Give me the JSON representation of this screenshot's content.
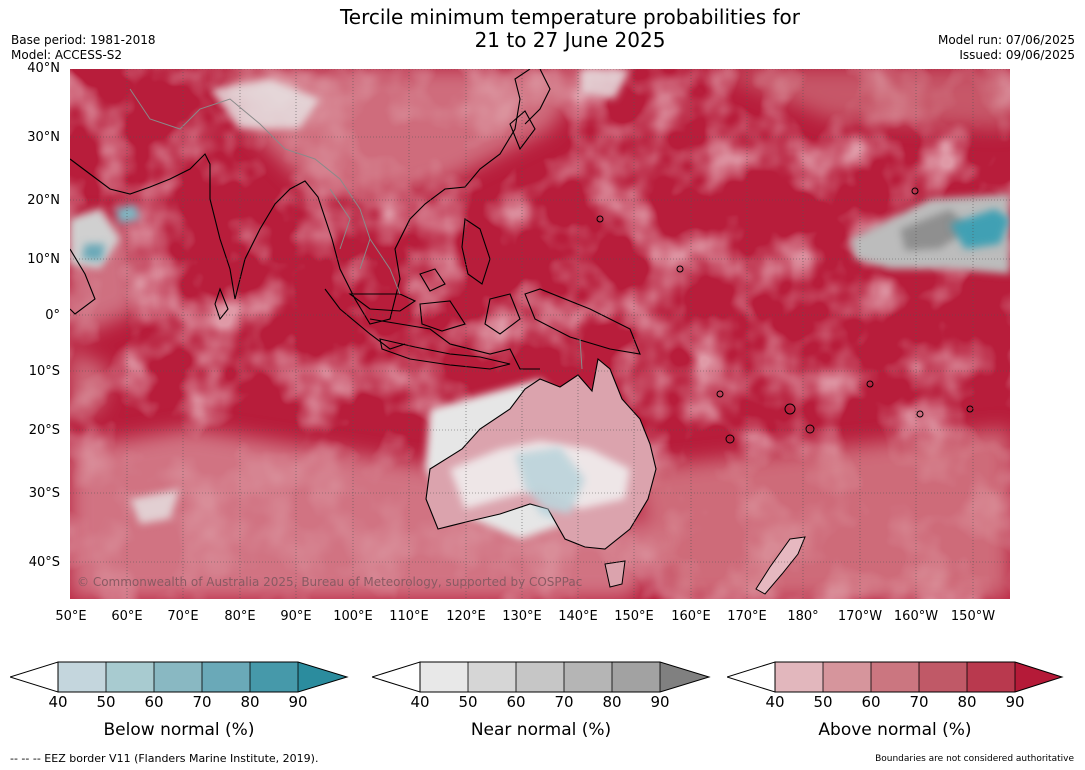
{
  "header": {
    "title_line1": "Tercile minimum temperature probabilities for",
    "title_line2": "21 to 27 June 2025",
    "base_period": "Base period: 1981-2018",
    "model": "Model: ACCESS-S2",
    "model_run": "Model run: 07/06/2025",
    "issued": "Issued: 09/06/2025"
  },
  "map": {
    "lat_labels": [
      "40°N",
      "30°N",
      "20°N",
      "10°N",
      "0°",
      "10°S",
      "20°S",
      "30°S",
      "40°S"
    ],
    "lon_labels": [
      "50°E",
      "60°E",
      "70°E",
      "80°E",
      "90°E",
      "100°E",
      "110°E",
      "120°E",
      "130°E",
      "140°E",
      "150°E",
      "160°E",
      "170°E",
      "180°",
      "170°W",
      "160°W",
      "150°W"
    ],
    "copyright": "© Commonwealth of Australia 2025, Bureau of Meteorology, supported by COSPPac",
    "colors": {
      "above_base": "#b81d3b",
      "above_light": "#dc9aa5",
      "near": "#c8c8c8",
      "below": "#4a9fb0",
      "coast": "#000000",
      "border": "#8a8a8a"
    }
  },
  "colorbars": [
    {
      "label": "Below normal (%)",
      "ticks": [
        "40",
        "50",
        "60",
        "70",
        "80",
        "90"
      ],
      "colors": [
        "#c4d6dd",
        "#a8cbd0",
        "#89b8c2",
        "#6aa9b8",
        "#4699aa",
        "#2b8c9e"
      ]
    },
    {
      "label": "Near normal (%)",
      "ticks": [
        "40",
        "50",
        "60",
        "70",
        "80",
        "90"
      ],
      "colors": [
        "#e8e8e8",
        "#d6d6d6",
        "#c6c6c6",
        "#b5b5b5",
        "#a2a2a2",
        "#808080"
      ]
    },
    {
      "label": "Above normal (%)",
      "ticks": [
        "40",
        "50",
        "60",
        "70",
        "80",
        "90"
      ],
      "colors": [
        "#e2b7bd",
        "#d6959c",
        "#cb7680",
        "#c05967",
        "#b9394e",
        "#b51a38"
      ]
    }
  ],
  "footer": {
    "eez": "--  --  -- EEZ border V11 (Flanders Marine Institute, 2019).",
    "boundaries": "Boundaries are not considered authoritative"
  }
}
